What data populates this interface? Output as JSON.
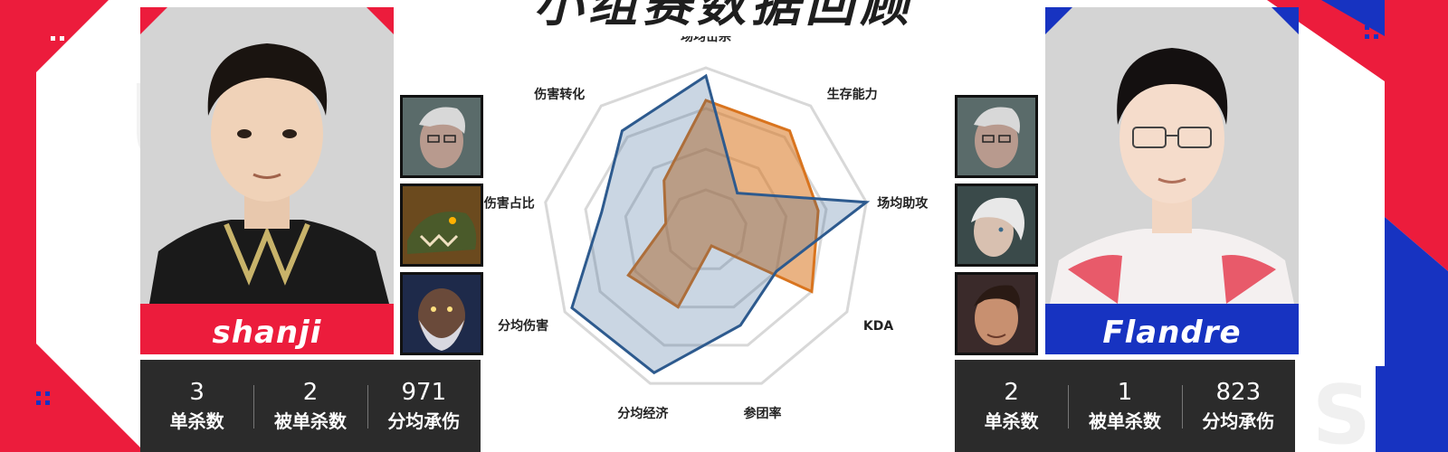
{
  "title": "小组赛数据回顾",
  "left_player": {
    "name": "shanji",
    "champions": [
      "caitlyn-portrait",
      "renekton-portrait",
      "gragas-portrait"
    ],
    "stats": [
      {
        "value": "3",
        "label": "单杀数"
      },
      {
        "value": "2",
        "label": "被单杀数"
      },
      {
        "value": "971",
        "label": "分均承伤"
      }
    ]
  },
  "right_player": {
    "name": "Flandre",
    "champions": [
      "caitlyn-portrait",
      "camille-portrait",
      "jayce-portrait"
    ],
    "stats": [
      {
        "value": "2",
        "label": "单杀数"
      },
      {
        "value": "1",
        "label": "被单杀数"
      },
      {
        "value": "823",
        "label": "分均承伤"
      }
    ]
  },
  "colors": {
    "left_accent": "#ec1c3c",
    "right_accent": "#1733c1",
    "blue_series": "#2d5a8e",
    "orange_series": "#d9741e"
  },
  "chart_data": {
    "type": "radar",
    "axes": [
      "场均击杀",
      "生存能力",
      "场均助攻",
      "KDA",
      "参团率",
      "分均经济",
      "分均伤害",
      "伤害占比",
      "伤害转化"
    ],
    "scale": [
      0,
      1
    ],
    "rings": 4,
    "series": [
      {
        "color": "#2d5a8e",
        "values": [
          0.95,
          0.3,
          1.0,
          0.5,
          0.62,
          0.93,
          0.95,
          0.65,
          0.8
        ]
      },
      {
        "color": "#d9741e",
        "values": [
          0.8,
          0.8,
          0.7,
          0.75,
          0.1,
          0.5,
          0.55,
          0.25,
          0.4
        ]
      }
    ]
  }
}
